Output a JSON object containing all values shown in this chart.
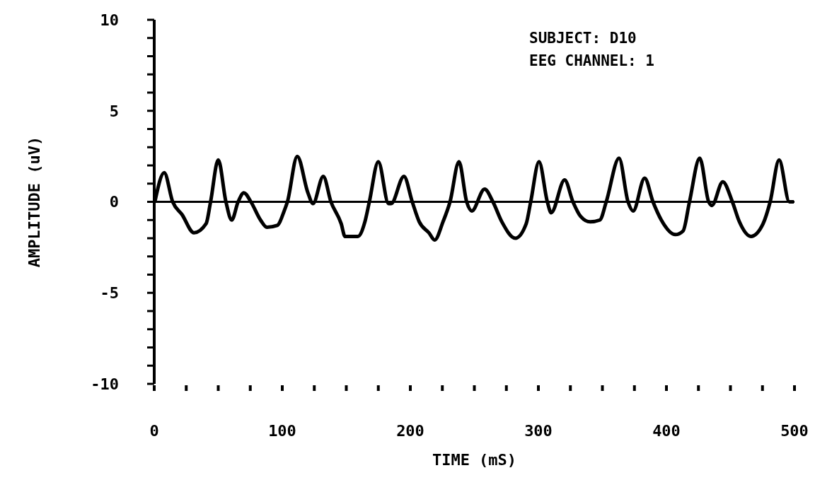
{
  "chart_data": {
    "type": "line",
    "xlabel": "TIME (mS)",
    "ylabel": "AMPLITUDE (uV)",
    "annotations": [
      "SUBJECT: D10",
      "EEG CHANNEL: 1"
    ],
    "x": [
      0.5,
      7.8,
      14.4,
      21.7,
      31,
      40.5,
      44,
      50,
      56,
      60.5,
      65.5,
      70,
      75.5,
      83,
      88,
      96,
      101.5,
      104,
      111.7,
      120,
      124,
      132,
      138,
      146,
      149,
      159,
      164.5,
      168,
      175,
      183,
      185,
      195,
      201.5,
      207,
      214.5,
      219,
      225.5,
      231,
      238,
      244,
      248,
      258,
      264.5,
      271.5,
      282,
      290.5,
      294,
      300.5,
      307,
      310,
      320.5,
      327,
      333,
      340.5,
      348,
      353,
      363,
      370,
      374,
      383,
      389.5,
      396,
      407,
      413,
      418,
      426,
      433,
      435.5,
      444,
      451.5,
      457,
      466,
      475.5,
      481,
      488,
      496,
      499.5
    ],
    "series": [
      {
        "color": "#000000",
        "values": [
          0,
          1.6,
          0,
          -0.7,
          -1.7,
          -1.2,
          0,
          2.3,
          0,
          -1,
          0,
          0.5,
          0,
          -1,
          -1.4,
          -1.3,
          -0.5,
          0,
          2.5,
          0.5,
          -0.1,
          1.4,
          0,
          -1.2,
          -1.9,
          -1.9,
          -1.1,
          0,
          2.2,
          -0.1,
          -0.1,
          1.4,
          0,
          -1.1,
          -1.7,
          -2.1,
          -1.1,
          0,
          2.2,
          0,
          -0.5,
          0.7,
          0,
          -1.1,
          -2,
          -1.2,
          0,
          2.2,
          0,
          -0.6,
          1.2,
          0,
          -0.8,
          -1.1,
          -1,
          0,
          2.4,
          0,
          -0.5,
          1.3,
          0,
          -1,
          -1.8,
          -1.6,
          0,
          2.4,
          0,
          -0.2,
          1.1,
          0,
          -1.1,
          -1.9,
          -1.2,
          0,
          2.3,
          0,
          0
        ]
      }
    ],
    "xlim": [
      0,
      500
    ],
    "xticks": [
      0,
      {
        "value": 25,
        "label": null
      },
      {
        "value": 50,
        "label": null
      },
      {
        "value": 75,
        "label": null
      },
      100,
      {
        "value": 125,
        "label": null
      },
      {
        "value": 150,
        "label": null
      },
      {
        "value": 175,
        "label": null
      },
      200,
      {
        "value": 225,
        "label": null
      },
      {
        "value": 250,
        "label": null
      },
      {
        "value": 275,
        "label": null
      },
      300,
      {
        "value": 325,
        "label": null
      },
      {
        "value": 350,
        "label": null
      },
      {
        "value": 375,
        "label": null
      },
      400,
      {
        "value": 425,
        "label": null
      },
      {
        "value": 450,
        "label": null
      },
      {
        "value": 475,
        "label": null
      },
      500
    ],
    "ylim": [
      -10,
      10
    ],
    "yticks": [
      -10,
      {
        "value": -9,
        "label": null
      },
      {
        "value": -8,
        "label": null
      },
      {
        "value": -7,
        "label": null
      },
      {
        "value": -6,
        "label": null
      },
      -5,
      {
        "value": -4,
        "label": null
      },
      {
        "value": -3,
        "label": null
      },
      {
        "value": -2,
        "label": null
      },
      {
        "value": -1,
        "label": null
      },
      0,
      {
        "value": 1,
        "label": null
      },
      {
        "value": 2,
        "label": null
      },
      {
        "value": 3,
        "label": null
      },
      {
        "value": 4,
        "label": null
      },
      5,
      {
        "value": 6,
        "label": null
      },
      {
        "value": 7,
        "label": null
      },
      {
        "value": 8,
        "label": null
      },
      {
        "value": 9,
        "label": null
      },
      10
    ],
    "ref_lines": [
      {
        "axis": "y",
        "value": 0,
        "color": "#000000"
      }
    ],
    "grid": false,
    "legend": false
  }
}
